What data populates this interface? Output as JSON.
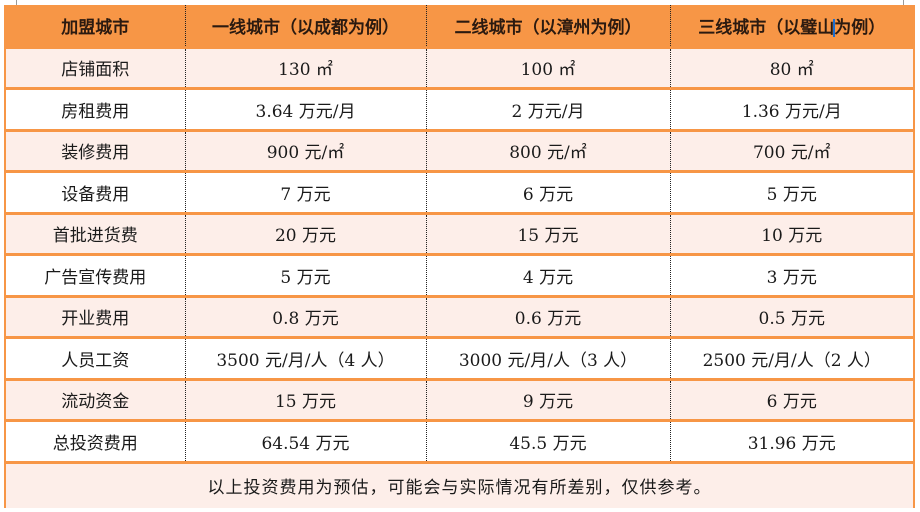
{
  "table": {
    "headers": [
      "加盟城市",
      "一线城市（以成都为例）",
      "二线城市（以漳州为例）",
      "三线城市（以璧山",
      "为例）"
    ],
    "header_labels": {
      "col0": "加盟城市",
      "col1": "一线城市（以成都为例）",
      "col2": "二线城市（以漳州为例）",
      "col3_before_cursor": "三线城市（以璧山",
      "col3_after_cursor": "为例）"
    },
    "rows": [
      {
        "label": "店铺面积",
        "tier1": "130 ㎡",
        "tier2": "100 ㎡",
        "tier3": "80 ㎡"
      },
      {
        "label": "房租费用",
        "tier1": "3.64 万元/月",
        "tier2": "2 万元/月",
        "tier3": "1.36 万元/月"
      },
      {
        "label": "装修费用",
        "tier1": "900 元/㎡",
        "tier2": "800 元/㎡",
        "tier3": "700 元/㎡"
      },
      {
        "label": "设备费用",
        "tier1": "7 万元",
        "tier2": "6 万元",
        "tier3": "5 万元"
      },
      {
        "label": "首批进货费",
        "tier1": "20 万元",
        "tier2": "15 万元",
        "tier3": "10 万元"
      },
      {
        "label": "广告宣传费用",
        "tier1": "5 万元",
        "tier2": "4 万元",
        "tier3": "3 万元"
      },
      {
        "label": "开业费用",
        "tier1": "0.8 万元",
        "tier2": "0.6 万元",
        "tier3": "0.5 万元"
      },
      {
        "label": "人员工资",
        "tier1": "3500 元/月/人（4 人）",
        "tier2": "3000 元/月/人（3 人）",
        "tier3": "2500 元/月/人（2 人）"
      },
      {
        "label": "流动资金",
        "tier1": "15 万元",
        "tier2": "9 万元",
        "tier3": "6 万元"
      },
      {
        "label": "总投资费用",
        "tier1": "64.54 万元",
        "tier2": "45.5 万元",
        "tier3": "31.96 万元"
      }
    ],
    "note": "以上投资费用为预估，可能会与实际情况有所差别，仅供参考。"
  },
  "colors": {
    "header_bg": "#f79646",
    "odd_row_bg": "#fdeee9",
    "even_row_bg": "#ffffff",
    "border": "#f79646",
    "cursor": "#1e6fd0"
  }
}
